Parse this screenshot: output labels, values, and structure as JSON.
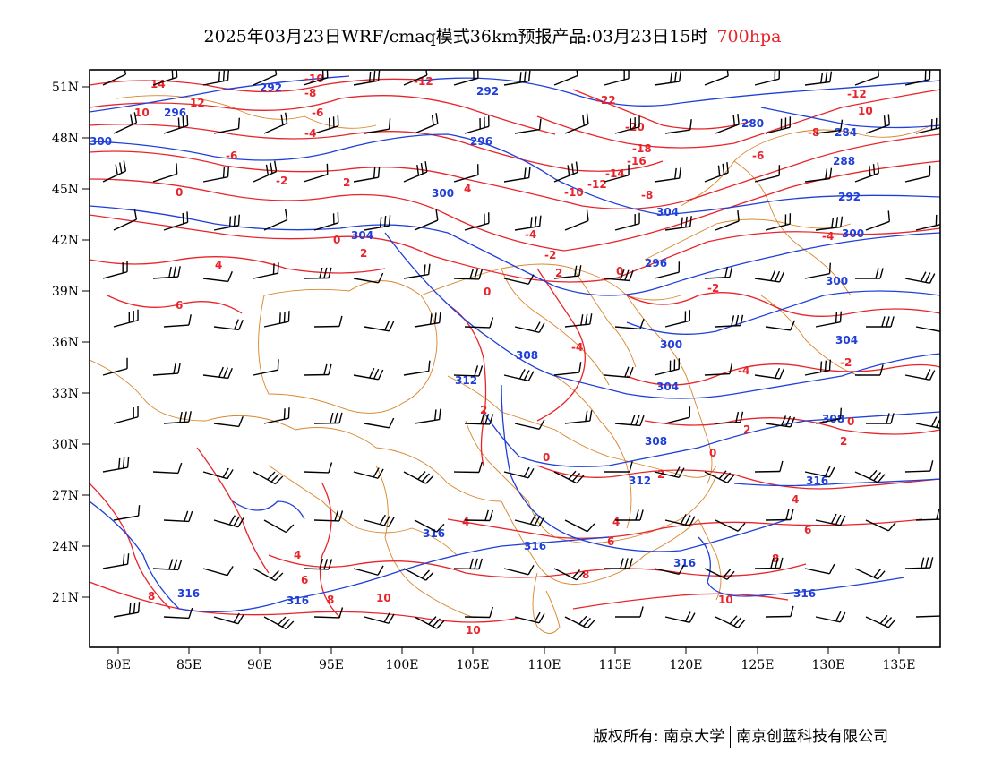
{
  "title": {
    "main": "2025年03月23日WRF/cmaq模式36km预报产品:03月23日15时",
    "level": "700hpa"
  },
  "axes": {
    "lat_labels": [
      "51N",
      "48N",
      "45N",
      "42N",
      "39N",
      "36N",
      "33N",
      "30N",
      "27N",
      "24N",
      "21N"
    ],
    "lon_labels": [
      "80E",
      "85E",
      "90E",
      "95E",
      "100E",
      "105E",
      "110E",
      "115E",
      "120E",
      "125E",
      "130E",
      "135E"
    ]
  },
  "contours": {
    "height_labels": [
      "300",
      "296",
      "292",
      "292",
      "296",
      "300",
      "304",
      "300",
      "304",
      "308",
      "304",
      "308",
      "312",
      "316",
      "316",
      "316",
      "316",
      "316",
      "312",
      "308",
      "304",
      "300",
      "296",
      "292",
      "288",
      "280",
      "284",
      "292",
      "296",
      "300",
      "304",
      "308",
      "312",
      "316"
    ],
    "temperature_labels": [
      "14",
      "12",
      "10",
      "8",
      "6",
      "4",
      "2",
      "0",
      "-2",
      "-4",
      "-6",
      "-8",
      "-10",
      "-12",
      "-14",
      "-16",
      "-18",
      "-20",
      "-22"
    ]
  },
  "colors": {
    "height": "#1f3fd8",
    "temperature": "#e8242a",
    "border": "#d9852a",
    "wind": "#000000"
  },
  "footer": {
    "left": "版权所有: 南京大学",
    "right": "南京创蓝科技有限公司"
  }
}
